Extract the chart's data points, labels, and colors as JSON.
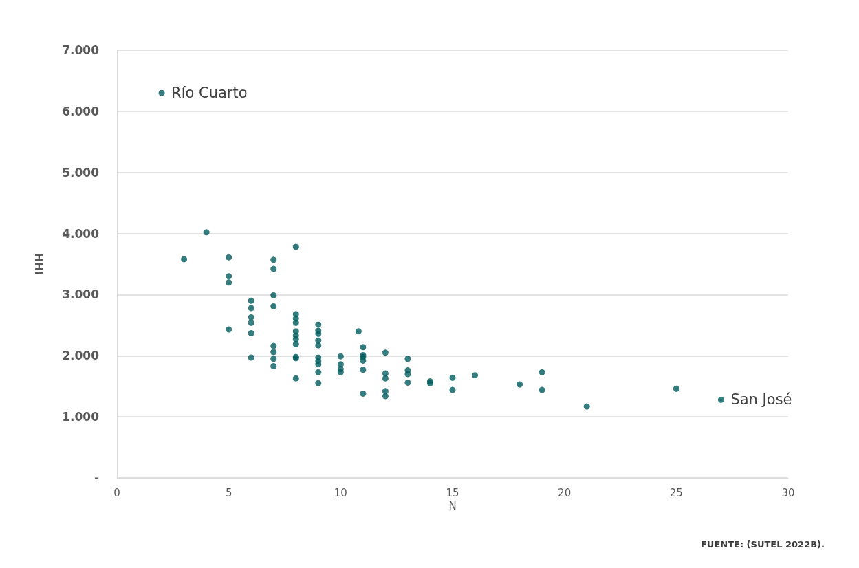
{
  "chart_data": {
    "type": "scatter",
    "xlabel": "N",
    "ylabel": "IHH",
    "color": "#015b5c",
    "marker": "circle",
    "grid": "y",
    "x": [
      2,
      3,
      4,
      5,
      5,
      5,
      5,
      6,
      6,
      6,
      6,
      6,
      6,
      7,
      7,
      7,
      7,
      7,
      7,
      7,
      7,
      8,
      8,
      8,
      8,
      8,
      8,
      8,
      8,
      8,
      8,
      8,
      9,
      9,
      9,
      9,
      9,
      9,
      9,
      9,
      9,
      9,
      10,
      10,
      10,
      10,
      10.8,
      11,
      11,
      11,
      11,
      11,
      11,
      12,
      12,
      12,
      12,
      12,
      13,
      13,
      13,
      13,
      14,
      14,
      15,
      15,
      16,
      18,
      19,
      19,
      21,
      25,
      27
    ],
    "values": [
      6300,
      3580,
      4020,
      3610,
      3300,
      3200,
      2430,
      2900,
      2780,
      2630,
      2540,
      2370,
      1970,
      3570,
      3420,
      2990,
      2810,
      2160,
      2060,
      1950,
      1830,
      3780,
      2680,
      2610,
      2540,
      2400,
      2330,
      2270,
      2190,
      1980,
      1960,
      1630,
      2510,
      2410,
      2360,
      2250,
      2170,
      1970,
      1910,
      1860,
      1730,
      1550,
      1990,
      1860,
      1780,
      1730,
      2400,
      2140,
      2010,
      1980,
      1920,
      1770,
      1380,
      2050,
      1710,
      1630,
      1420,
      1340,
      1950,
      1760,
      1700,
      1560,
      1580,
      1550,
      1640,
      1440,
      1680,
      1530,
      1730,
      1440,
      1170,
      1460,
      1280
    ],
    "xlim": [
      0,
      30
    ],
    "xticks": [
      0,
      5,
      10,
      15,
      20,
      25,
      30
    ],
    "ylim": [
      0,
      7000
    ],
    "yticks": [
      {
        "value": 0,
        "label": "-"
      },
      {
        "value": 1000,
        "label": "1.000"
      },
      {
        "value": 2000,
        "label": "2.000"
      },
      {
        "value": 3000,
        "label": "3.000"
      },
      {
        "value": 4000,
        "label": "4.000"
      },
      {
        "value": 5000,
        "label": "5.000"
      },
      {
        "value": 6000,
        "label": "6.000"
      },
      {
        "value": 7000,
        "label": "7.000"
      }
    ],
    "annotations": [
      {
        "text": "Río Cuarto",
        "x": 2,
        "y": 6300
      },
      {
        "text": "San José",
        "x": 27,
        "y": 1280
      },
      "FUENTE: (SUTEL 2022B)."
    ]
  }
}
